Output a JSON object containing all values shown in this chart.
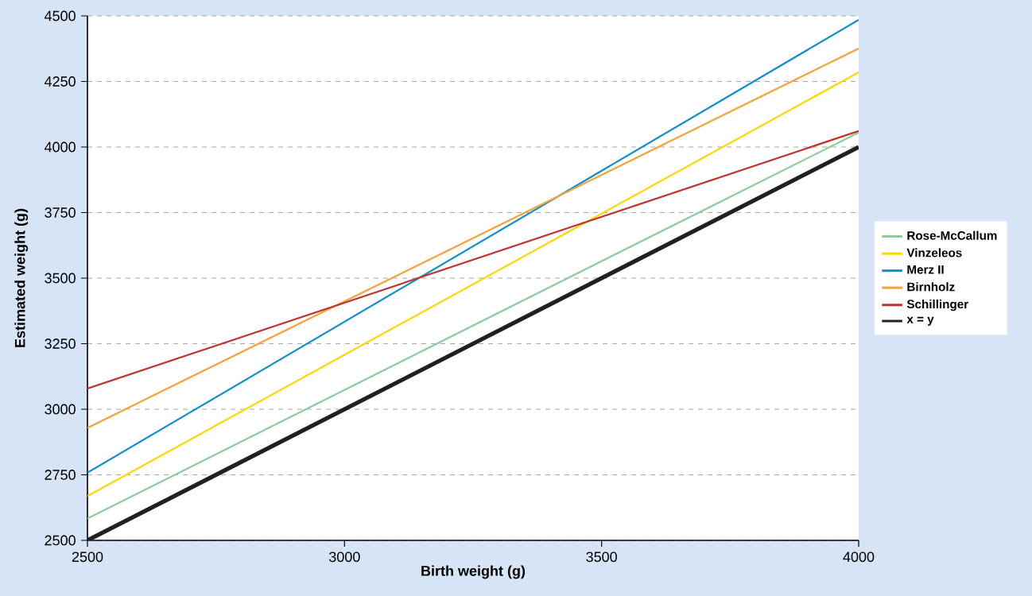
{
  "chart_data": {
    "type": "line",
    "xlabel": "Birth weight (g)",
    "ylabel": "Estimated weight (g)",
    "x": [
      2500,
      4000
    ],
    "series": [
      {
        "name": "Rose-McCallum",
        "color": "#8dcb97",
        "values": [
          2583,
          4055
        ]
      },
      {
        "name": "Vinzeleos",
        "color": "#ffd700",
        "values": [
          2669,
          4285
        ]
      },
      {
        "name": "Merz II",
        "color": "#0f8fd0",
        "values": [
          2758,
          4485
        ]
      },
      {
        "name": "Birnholz",
        "color": "#f7a239",
        "values": [
          2929,
          4376
        ]
      },
      {
        "name": "Schillinger",
        "color": "#c0312b",
        "values": [
          3079,
          4061
        ]
      },
      {
        "name": "x = y",
        "color": "#231f20",
        "values": [
          2500,
          4000
        ]
      }
    ],
    "xlim": [
      2500,
      4000
    ],
    "ylim": [
      2500,
      4500
    ],
    "xticks": [
      2500,
      3000,
      3500,
      4000
    ],
    "yticks": [
      2500,
      2750,
      3000,
      3250,
      3500,
      3750,
      4000,
      4250,
      4500
    ],
    "grid": "y",
    "legend": "right",
    "marker": "none",
    "line_style": "solid"
  }
}
